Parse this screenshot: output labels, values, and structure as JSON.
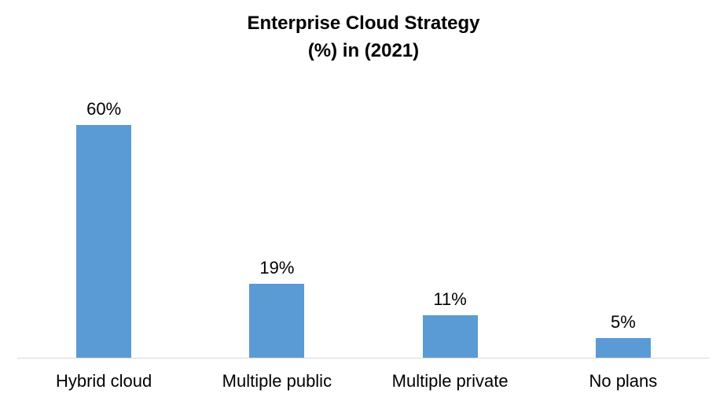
{
  "chart_data": {
    "type": "bar",
    "title": "Enterprise Cloud Strategy (%) in (2021)",
    "title_lines": [
      "Enterprise Cloud Strategy",
      "(%) in (2021)"
    ],
    "categories": [
      "Hybrid cloud",
      "Multiple public",
      "Multiple private",
      "No plans"
    ],
    "values": [
      60,
      19,
      11,
      5
    ],
    "value_labels": [
      "60%",
      "19%",
      "11%",
      "5%"
    ],
    "xlabel": "",
    "ylabel": "",
    "ylim": [
      0,
      70
    ],
    "grid": false,
    "legend": false,
    "y_axis_visible": false,
    "bar_color": "#5B9BD5",
    "axis_line_color": "#D9D9D9",
    "text_color": "#000000",
    "background_color": "#FFFFFF"
  }
}
